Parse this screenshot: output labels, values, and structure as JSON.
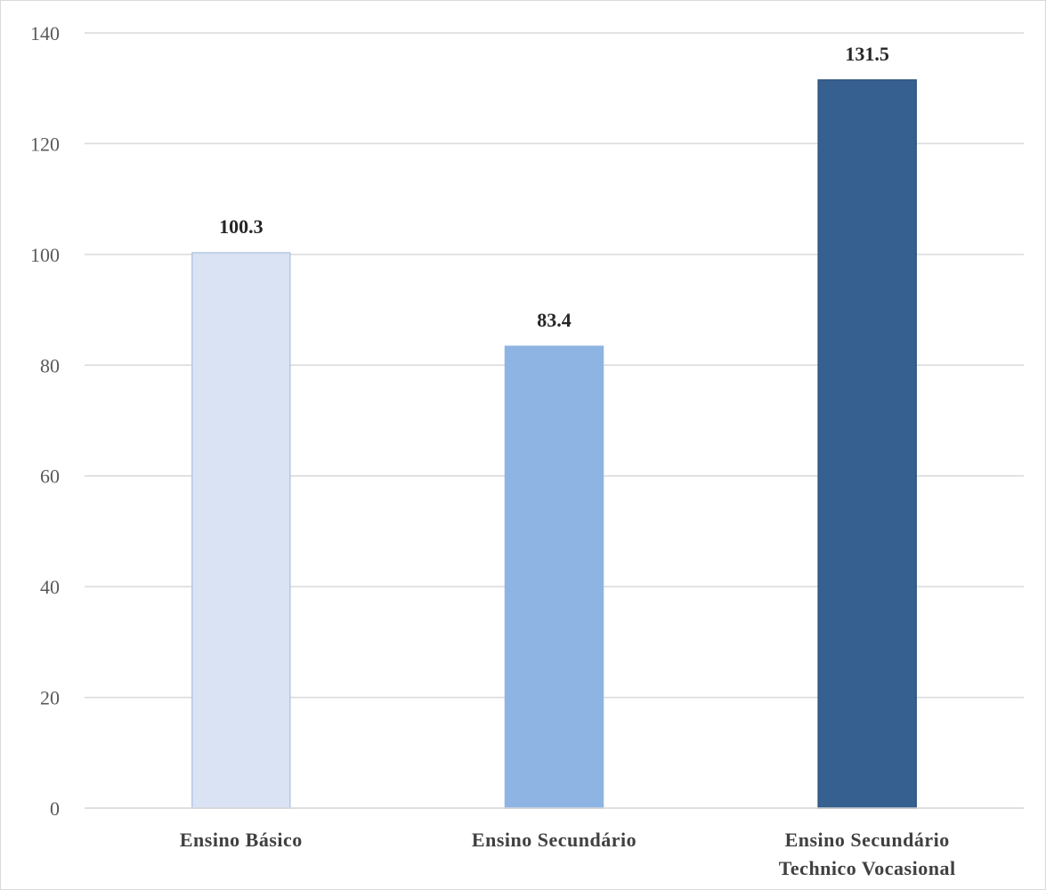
{
  "chart_data": {
    "type": "bar",
    "title": "",
    "xlabel": "",
    "ylabel": "",
    "categories": [
      [
        "Ensino Básico"
      ],
      [
        "Ensino Secundário"
      ],
      [
        "Ensino Secundário",
        "Technico  Vocasional"
      ]
    ],
    "values": [
      100.3,
      83.4,
      131.5
    ],
    "data_labels": [
      "100.3",
      "83.4",
      "131.5"
    ],
    "bar_colors": [
      "#dae3f3",
      "#8eb4e3",
      "#35608f"
    ],
    "bar_edge_colors": [
      "#b4c7e7",
      "#8eb4e3",
      "#2f5581"
    ],
    "ylim": [
      0,
      140
    ],
    "yticks": [
      0,
      20,
      40,
      60,
      80,
      100,
      120,
      140
    ],
    "grid": true,
    "legend": "none"
  }
}
